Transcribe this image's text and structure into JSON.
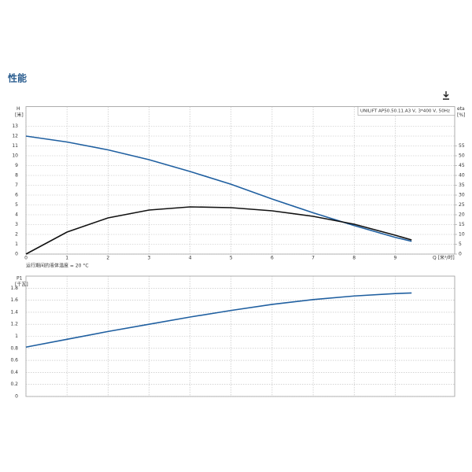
{
  "page_title": "性能",
  "chart_data": [
    {
      "type": "line",
      "legend_text": "UNILIFT AP50.50.11.A3 V, 3*400 V, 50Hz",
      "ylabel": "H",
      "yunit": "[米]",
      "y2label": "eta",
      "y2unit": "[%]",
      "xlabel": "Q [米³/时]",
      "note": "运行期间的液体温度 = 20 °C",
      "x": [
        0,
        1,
        2,
        3,
        4,
        5,
        6,
        7,
        8,
        9,
        9.4
      ],
      "xlim": [
        0,
        10.45
      ],
      "xticks": [
        0,
        1,
        2,
        3,
        4,
        5,
        6,
        7,
        8,
        9
      ],
      "ylim": [
        0,
        15
      ],
      "yticks": [
        0,
        1,
        2,
        3,
        4,
        5,
        6,
        7,
        8,
        9,
        10,
        11,
        12,
        13
      ],
      "y2lim": [
        0,
        75
      ],
      "y2ticks": [
        0,
        5,
        10,
        15,
        20,
        25,
        30,
        35,
        40,
        45,
        50,
        55
      ],
      "grid": true,
      "series": [
        {
          "color": "#1f5fa0",
          "values": [
            12,
            11.4,
            10.6,
            9.6,
            8.4,
            7.1,
            5.6,
            4.2,
            2.9,
            1.7,
            1.3
          ]
        },
        {
          "color": "#111111",
          "axis": "y2",
          "values": [
            0,
            11.2,
            18.4,
            22.4,
            24,
            23.6,
            22,
            19.2,
            15.2,
            9.6,
            7.2
          ]
        }
      ]
    },
    {
      "type": "line",
      "ylabel": "P1",
      "yunit": "[千瓦]",
      "x": [
        0,
        1,
        2,
        3,
        4,
        5,
        6,
        7,
        8,
        9,
        9.4
      ],
      "xlim": [
        0,
        10.45
      ],
      "xticks": [
        0,
        1,
        2,
        3,
        4,
        5,
        6,
        7,
        8,
        9
      ],
      "ylim": [
        0,
        2
      ],
      "yticks": [
        0,
        0.2,
        0.4,
        0.6,
        0.8,
        1,
        1.2,
        1.4,
        1.6,
        1.8
      ],
      "grid": true,
      "series": [
        {
          "color": "#1f5fa0",
          "values": [
            0.82,
            0.95,
            1.08,
            1.2,
            1.32,
            1.43,
            1.53,
            1.61,
            1.67,
            1.71,
            1.72
          ]
        }
      ]
    }
  ]
}
